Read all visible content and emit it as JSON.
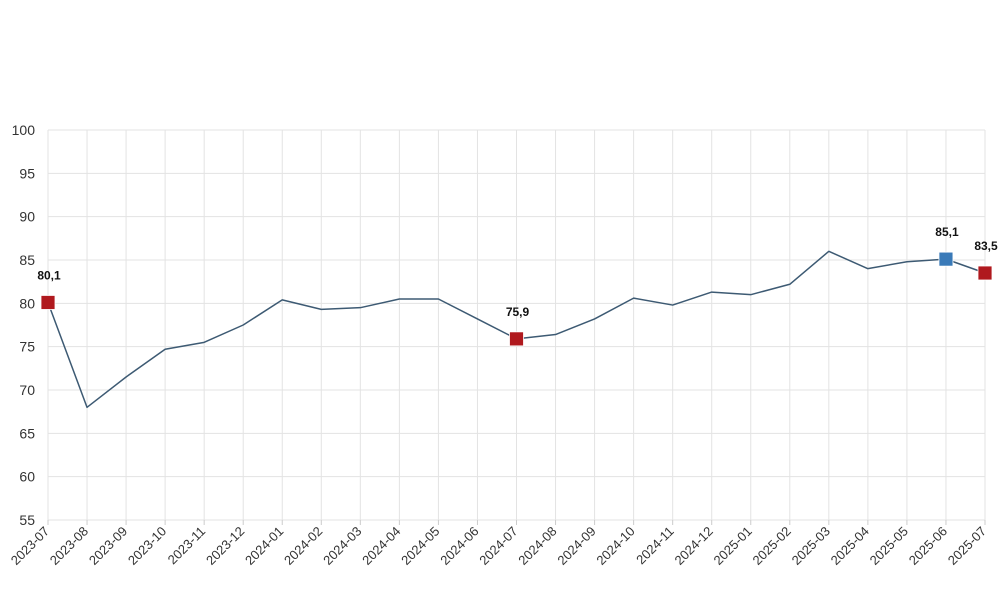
{
  "chart_data": {
    "type": "line",
    "title": "",
    "xlabel": "",
    "ylabel": "",
    "ylim": [
      55,
      100
    ],
    "yticks": [
      "55",
      "60",
      "65",
      "70",
      "75",
      "80",
      "85",
      "90",
      "95",
      "100"
    ],
    "grid": true,
    "categories": [
      "2023-07",
      "2023-08",
      "2023-09",
      "2023-10",
      "2023-11",
      "2023-12",
      "2024-01",
      "2024-02",
      "2024-03",
      "2024-04",
      "2024-05",
      "2024-06",
      "2024-07",
      "2024-08",
      "2024-09",
      "2024-10",
      "2024-11",
      "2024-12",
      "2025-01",
      "2025-02",
      "2025-03",
      "2025-04",
      "2025-05",
      "2025-06",
      "2025-07"
    ],
    "series": [
      {
        "values": [
          80.1,
          68.0,
          71.5,
          74.7,
          75.5,
          77.5,
          80.4,
          79.3,
          79.5,
          80.5,
          80.5,
          78.2,
          75.9,
          76.4,
          78.2,
          80.6,
          79.8,
          81.3,
          81.0,
          82.2,
          86.0,
          84.0,
          84.8,
          85.1,
          83.5
        ],
        "color": "#3d5a73"
      }
    ],
    "annotations": [
      {
        "index": 0,
        "label": "80,1",
        "color": "#b0191e"
      },
      {
        "index": 12,
        "label": "75,9",
        "color": "#b0191e"
      },
      {
        "index": 23,
        "label": "85,1",
        "color": "#3a7ab8"
      },
      {
        "index": 24,
        "label": "83,5",
        "color": "#b0191e"
      }
    ]
  }
}
